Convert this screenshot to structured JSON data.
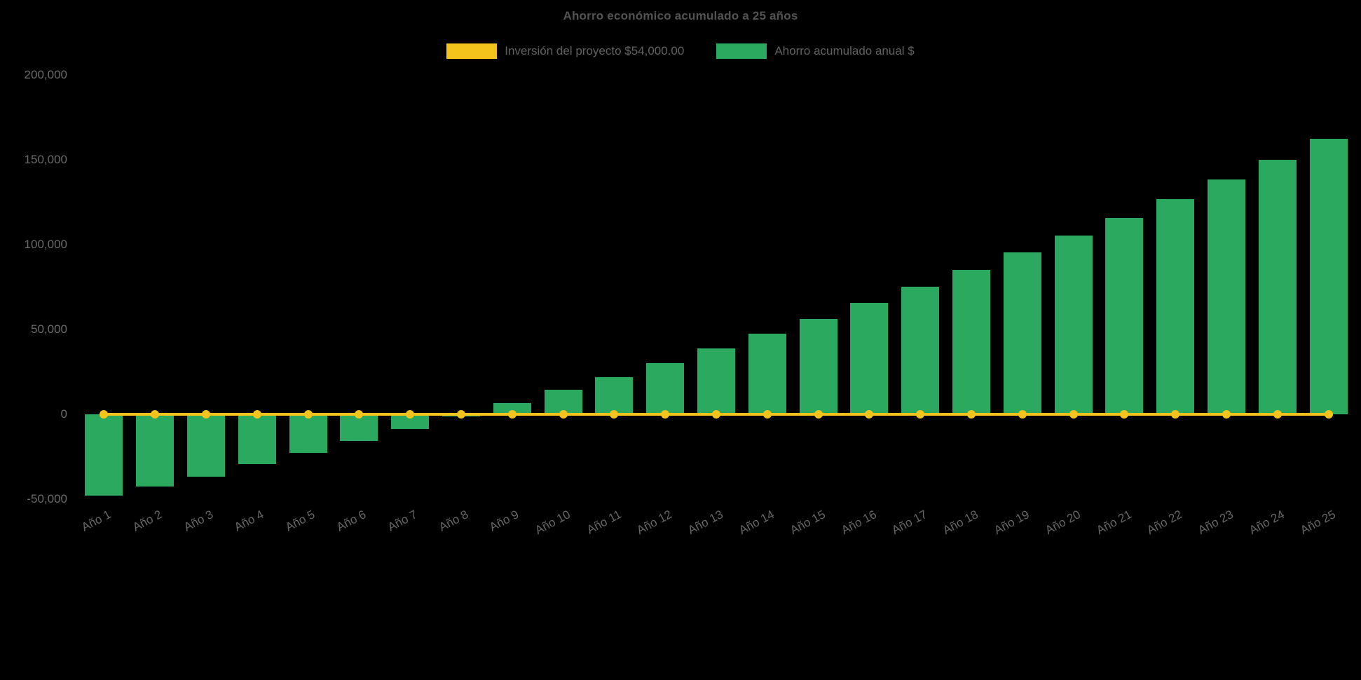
{
  "page": {
    "title": "Ahorro económico acumulado a 25 años"
  },
  "legend": {
    "items": [
      {
        "label": "Inversión del proyecto $54,000.00",
        "color": "#F4C41C"
      },
      {
        "label": "Ahorro acumulado anual $",
        "color": "#2BA95F"
      }
    ]
  },
  "chart_data": {
    "type": "bar",
    "title": "Ahorro económico acumulado a 25 años",
    "categories": [
      "Año 1",
      "Año 2",
      "Año 3",
      "Año 4",
      "Año 5",
      "Año 6",
      "Año 7",
      "Año 8",
      "Año 9",
      "Año 10",
      "Año 11",
      "Año 12",
      "Año 13",
      "Año 14",
      "Año 15",
      "Año 16",
      "Año 17",
      "Año 18",
      "Año 19",
      "Año 20",
      "Año 21",
      "Año 22",
      "Año 23",
      "Año 24",
      "Año 25"
    ],
    "series": [
      {
        "name": "Inversión del proyecto $54,000.00",
        "type": "line",
        "color": "#F4C41C",
        "values": [
          0,
          0,
          0,
          0,
          0,
          0,
          0,
          0,
          0,
          0,
          0,
          0,
          0,
          0,
          0,
          0,
          0,
          0,
          0,
          0,
          0,
          0,
          0,
          0,
          0
        ]
      },
      {
        "name": "Ahorro acumulado anual $",
        "type": "bar",
        "color": "#2BA95F",
        "values": [
          -48000,
          -42600,
          -36700,
          -29500,
          -22600,
          -15900,
          -8800,
          -1400,
          6500,
          14500,
          21800,
          30200,
          38800,
          47700,
          56000,
          65500,
          75200,
          85000,
          95300,
          105300,
          115800,
          127000,
          138500,
          150200,
          162300
        ]
      }
    ],
    "ylim": [
      -50000,
      200000
    ],
    "yticks": [
      200000,
      150000,
      100000,
      50000,
      0,
      -50000
    ],
    "ytick_labels": [
      "200,000",
      "150,000",
      "100,000",
      "50,000",
      "0",
      "-50,000"
    ],
    "grid": false,
    "legend_position": "top",
    "background": "#000000",
    "text_color": "#666666"
  }
}
